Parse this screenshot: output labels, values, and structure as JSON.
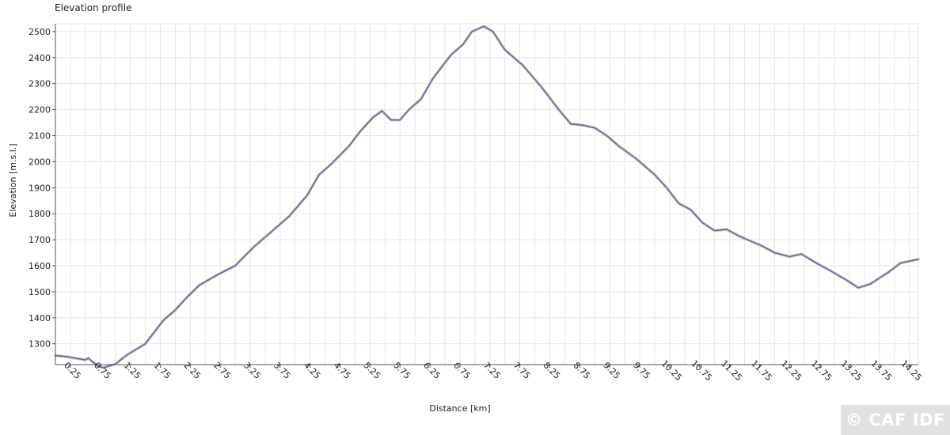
{
  "chart_data": {
    "type": "line",
    "title": "Elevation profile",
    "xlabel": "Distance [km]",
    "ylabel": "Elevation [m.s.l.]",
    "xlim": [
      0,
      14.4
    ],
    "ylim": [
      1220,
      2530
    ],
    "grid": true,
    "yticks": [
      1300,
      1400,
      1500,
      1600,
      1700,
      1800,
      1900,
      2000,
      2100,
      2200,
      2300,
      2400,
      2500
    ],
    "xticks": [
      0.25,
      0.75,
      1.25,
      1.75,
      2.25,
      2.75,
      3.25,
      3.75,
      4.25,
      4.75,
      5.25,
      5.75,
      6.25,
      6.75,
      7.25,
      7.75,
      8.25,
      8.75,
      9.25,
      9.75,
      10.25,
      10.75,
      11.25,
      11.75,
      12.25,
      12.75,
      13.25,
      13.75,
      14.25
    ],
    "xtick_labels": [
      "0.25",
      "0.75",
      "1.25",
      "1.75",
      "2.25",
      "2.75",
      "3.25",
      "3.75",
      "4.25",
      "4.75",
      "5.25",
      "5.75",
      "6.25",
      "6.75",
      "7.25",
      "7.75",
      "8.25",
      "8.75",
      "9.25",
      "9.75",
      "10.25",
      "10.75",
      "11.25",
      "11.75",
      "12.25",
      "12.75",
      "13.25",
      "13.75",
      "14.25"
    ],
    "line_color": "#6e6a8a",
    "series": [
      {
        "x": [
          0,
          0.2,
          0.5,
          0.55,
          0.7,
          0.8,
          1.0,
          1.2,
          1.5,
          1.8,
          2.0,
          2.2,
          2.4,
          2.7,
          3.0,
          3.3,
          3.6,
          3.9,
          4.2,
          4.4,
          4.6,
          4.9,
          5.1,
          5.3,
          5.45,
          5.6,
          5.75,
          5.9,
          6.1,
          6.3,
          6.6,
          6.8,
          6.95,
          7.15,
          7.3,
          7.5,
          7.8,
          8.1,
          8.4,
          8.6,
          8.8,
          9.0,
          9.2,
          9.4,
          9.7,
          10.0,
          10.2,
          10.4,
          10.6,
          10.8,
          11.0,
          11.2,
          11.4,
          11.55,
          11.8,
          12.0,
          12.25,
          12.45,
          12.7,
          12.9,
          13.2,
          13.4,
          13.6,
          13.9,
          14.1,
          14.4
        ],
        "y": [
          1255,
          1250,
          1238,
          1245,
          1215,
          1208,
          1222,
          1258,
          1300,
          1390,
          1430,
          1480,
          1525,
          1565,
          1600,
          1670,
          1730,
          1790,
          1870,
          1950,
          1990,
          2060,
          2120,
          2170,
          2195,
          2160,
          2160,
          2200,
          2240,
          2320,
          2410,
          2450,
          2500,
          2520,
          2500,
          2430,
          2370,
          2290,
          2200,
          2145,
          2140,
          2130,
          2100,
          2060,
          2010,
          1950,
          1900,
          1840,
          1815,
          1765,
          1735,
          1740,
          1715,
          1700,
          1675,
          1650,
          1635,
          1645,
          1610,
          1585,
          1545,
          1515,
          1530,
          1575,
          1610,
          1625
        ]
      }
    ]
  },
  "watermark": "© CAF IDF"
}
